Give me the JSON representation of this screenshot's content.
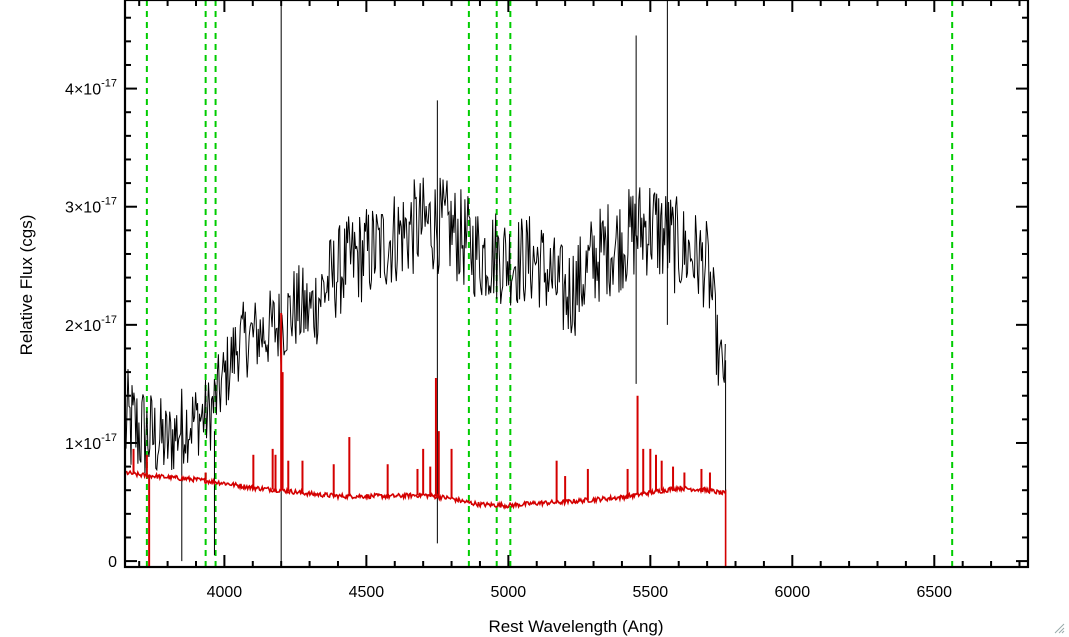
{
  "chart_data": {
    "type": "line",
    "title": "",
    "xlabel": "Rest Wavelength (Ang)",
    "ylabel": "Relative Flux (cgs)",
    "xlim": [
      3650,
      6830
    ],
    "ylim": [
      -0.05,
      4.75
    ],
    "y_scale_factor_label": "×10",
    "y_scale_exponent": "-17",
    "x_ticks": [
      {
        "value": 4000,
        "label": "4000"
      },
      {
        "value": 4500,
        "label": "4500"
      },
      {
        "value": 5000,
        "label": "5000"
      },
      {
        "value": 5500,
        "label": "5500"
      },
      {
        "value": 6000,
        "label": "6000"
      },
      {
        "value": 6500,
        "label": "6500"
      }
    ],
    "y_ticks": [
      {
        "value": 0,
        "mantissa": "0",
        "exp": ""
      },
      {
        "value": 1,
        "mantissa": "1",
        "exp": "-17"
      },
      {
        "value": 2,
        "mantissa": "2",
        "exp": "-17"
      },
      {
        "value": 3,
        "mantissa": "3",
        "exp": "-17"
      },
      {
        "value": 4,
        "mantissa": "4",
        "exp": "-17"
      }
    ],
    "x_minor_step": 100,
    "y_minor_step": 0.2,
    "grid": false,
    "legend": "none",
    "colors": {
      "observed": "#000000",
      "model": "#d40000",
      "lines": "#00cc00",
      "axes": "#000000"
    },
    "vertical_lines": [
      3727,
      3934,
      3969,
      4861,
      4959,
      5007,
      6563
    ],
    "series": [
      {
        "color": "#000000",
        "envelope_x": [
          3650,
          3700,
          3750,
          3800,
          3850,
          3900,
          3950,
          4000,
          4050,
          4100,
          4150,
          4200,
          4250,
          4300,
          4350,
          4400,
          4450,
          4500,
          4550,
          4600,
          4650,
          4700,
          4750,
          4800,
          4850,
          4900,
          4950,
          5000,
          5050,
          5100,
          5150,
          5200,
          5250,
          5300,
          5350,
          5400,
          5450,
          5500,
          5550,
          5600,
          5650,
          5700,
          5720,
          5740,
          5765
        ],
        "envelope_y": [
          1.15,
          1.1,
          1.05,
          1.0,
          1.15,
          1.2,
          1.25,
          1.55,
          1.85,
          1.9,
          1.95,
          2.0,
          2.15,
          2.1,
          2.3,
          2.45,
          2.55,
          2.6,
          2.65,
          2.75,
          2.8,
          2.85,
          2.85,
          2.8,
          2.7,
          2.6,
          2.6,
          2.55,
          2.55,
          2.55,
          2.4,
          2.25,
          2.35,
          2.55,
          2.65,
          2.7,
          2.8,
          2.85,
          2.75,
          2.65,
          2.6,
          2.5,
          2.2,
          1.7,
          1.6
        ],
        "noise_amplitude": [
          0.5,
          0.45,
          0.4,
          0.35,
          0.35,
          0.33,
          0.33,
          0.33,
          0.33,
          0.33,
          0.35,
          0.35,
          0.38,
          0.38,
          0.4,
          0.4,
          0.4,
          0.42,
          0.42,
          0.42,
          0.42,
          0.42,
          0.42,
          0.42,
          0.42,
          0.42,
          0.42,
          0.4,
          0.4,
          0.4,
          0.4,
          0.42,
          0.42,
          0.42,
          0.42,
          0.42,
          0.42,
          0.45,
          0.45,
          0.42,
          0.4,
          0.38,
          0.35,
          0.3,
          0.25
        ],
        "x_end": 5765,
        "spikes": [
          {
            "x": 4200,
            "y_top": 4.75,
            "y_bottom": -0.05
          },
          {
            "x": 5560,
            "y_top": 4.75,
            "y_bottom": 2.0
          },
          {
            "x": 4750,
            "y_top": 3.9,
            "y_bottom": 0.15
          },
          {
            "x": 5450,
            "y_top": 4.45,
            "y_bottom": 1.5
          },
          {
            "x": 3850,
            "y_top": 1.3,
            "y_bottom": 0.0
          },
          {
            "x": 3965,
            "y_top": 1.1,
            "y_bottom": 0.05
          }
        ]
      },
      {
        "color": "#d40000",
        "x": [
          3650,
          3700,
          3800,
          3900,
          4000,
          4100,
          4200,
          4300,
          4400,
          4500,
          4600,
          4700,
          4800,
          4850,
          4900,
          5000,
          5100,
          5200,
          5300,
          5400,
          5500,
          5600,
          5700,
          5765
        ],
        "y": [
          0.75,
          0.73,
          0.71,
          0.69,
          0.66,
          0.62,
          0.6,
          0.57,
          0.55,
          0.55,
          0.55,
          0.56,
          0.53,
          0.5,
          0.48,
          0.47,
          0.49,
          0.5,
          0.52,
          0.54,
          0.58,
          0.62,
          0.6,
          0.57
        ],
        "emission": [
          {
            "x": 3680,
            "y_top": 0.95
          },
          {
            "x": 3727,
            "y_top": 0.9
          },
          {
            "x": 3934,
            "y_top": 0.75
          },
          {
            "x": 4102,
            "y_top": 0.9
          },
          {
            "x": 4170,
            "y_top": 0.95
          },
          {
            "x": 4180,
            "y_top": 0.9
          },
          {
            "x": 4200,
            "y_top": 2.1
          },
          {
            "x": 4205,
            "y_top": 1.6
          },
          {
            "x": 4225,
            "y_top": 0.85
          },
          {
            "x": 4275,
            "y_top": 0.85
          },
          {
            "x": 4385,
            "y_top": 0.82
          },
          {
            "x": 4440,
            "y_top": 1.05
          },
          {
            "x": 4575,
            "y_top": 0.82
          },
          {
            "x": 4680,
            "y_top": 0.78
          },
          {
            "x": 4700,
            "y_top": 0.95
          },
          {
            "x": 4725,
            "y_top": 0.8
          },
          {
            "x": 4745,
            "y_top": 1.55
          },
          {
            "x": 4755,
            "y_top": 1.1
          },
          {
            "x": 4800,
            "y_top": 0.95
          },
          {
            "x": 5170,
            "y_top": 0.85
          },
          {
            "x": 5200,
            "y_top": 0.72
          },
          {
            "x": 5280,
            "y_top": 0.78
          },
          {
            "x": 5420,
            "y_top": 0.78
          },
          {
            "x": 5455,
            "y_top": 1.4
          },
          {
            "x": 5475,
            "y_top": 0.95
          },
          {
            "x": 5500,
            "y_top": 0.95
          },
          {
            "x": 5520,
            "y_top": 0.9
          },
          {
            "x": 5540,
            "y_top": 0.85
          },
          {
            "x": 5580,
            "y_top": 0.8
          },
          {
            "x": 5620,
            "y_top": 0.75
          },
          {
            "x": 5680,
            "y_top": 0.78
          },
          {
            "x": 5710,
            "y_top": 0.75
          }
        ],
        "drop_at": 5765,
        "after_drop_y": -0.05,
        "start_drop_x": 3735
      }
    ]
  }
}
